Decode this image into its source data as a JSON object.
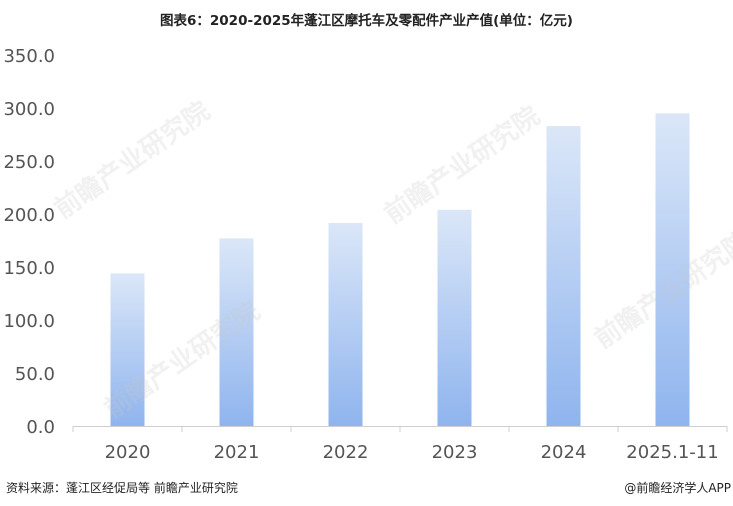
{
  "chart_data": {
    "type": "bar",
    "title": "图表6：2020-2025年蓬江区摩托车及零配件产业产值(单位：亿元)",
    "categories": [
      "2020",
      "2021",
      "2022",
      "2023",
      "2024",
      "2025.1-11"
    ],
    "values": [
      144,
      177,
      191.5,
      204,
      283,
      295
    ],
    "ylim": [
      0,
      350
    ],
    "yticks": [
      "0.0",
      "50.0",
      "100.0",
      "150.0",
      "200.0",
      "250.0",
      "300.0",
      "350.0"
    ],
    "xlabel": "",
    "ylabel": "",
    "grid": false,
    "colors": {
      "bar_top": "#dbe7f8",
      "bar_bottom": "#8fb4ee"
    }
  },
  "footer": {
    "source": "资料来源：蓬江区经促局等 前瞻产业研究院",
    "credit": "@前瞻经济学人APP"
  },
  "watermark": "前瞻产业研究院"
}
